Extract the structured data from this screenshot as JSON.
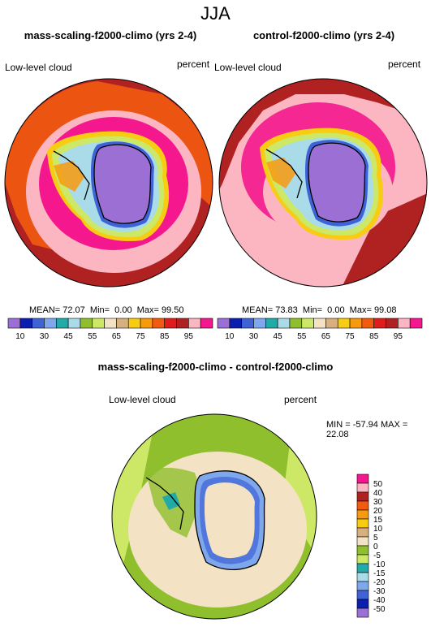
{
  "figure_title": "JJA",
  "panels": [
    {
      "title": "mass-scaling-f2000-climo (yrs 2-4)",
      "left_label": "Low-level cloud",
      "right_label": "percent",
      "stats": "MEAN= 72.07  Min=  0.00  Max= 99.50"
    },
    {
      "title": "control-f2000-climo (yrs 2-4)",
      "left_label": "Low-level cloud",
      "right_label": "percent",
      "stats": "MEAN= 73.83  Min=  0.00  Max= 99.08"
    }
  ],
  "top_colorbar": {
    "colors": [
      "#9b6fd4",
      "#0a1fb0",
      "#3f63d6",
      "#7fa8ec",
      "#21aaa6",
      "#a9dbe8",
      "#8fbf2d",
      "#cde866",
      "#f4e2c4",
      "#d8b080",
      "#f8cc12",
      "#f89a0e",
      "#f25a10",
      "#e01c1c",
      "#b02222",
      "#fbb6c2",
      "#f4178e"
    ],
    "labels": [
      "10",
      "30",
      "45",
      "55",
      "65",
      "75",
      "85",
      "95"
    ]
  },
  "diff_panel": {
    "title": "mass-scaling-f2000-climo - control-f2000-climo",
    "left_label": "Low-level cloud",
    "right_label": "percent",
    "stats": "MIN = -57.94 MAX = 22.08"
  },
  "diff_colorbar": {
    "colors": [
      "#f4178e",
      "#fbb6c2",
      "#b02222",
      "#f25a10",
      "#f89a0e",
      "#f8cc12",
      "#d8b080",
      "#f4e2c4",
      "#8fbf2d",
      "#cde866",
      "#21aaa6",
      "#a9dbe8",
      "#7fa8ec",
      "#3f63d6",
      "#0a1fb0",
      "#9b6fd4"
    ],
    "labels": [
      "50",
      "40",
      "30",
      "20",
      "15",
      "10",
      "5",
      "0",
      "-5",
      "-10",
      "-15",
      "-20",
      "-30",
      "-40",
      "-50"
    ]
  }
}
